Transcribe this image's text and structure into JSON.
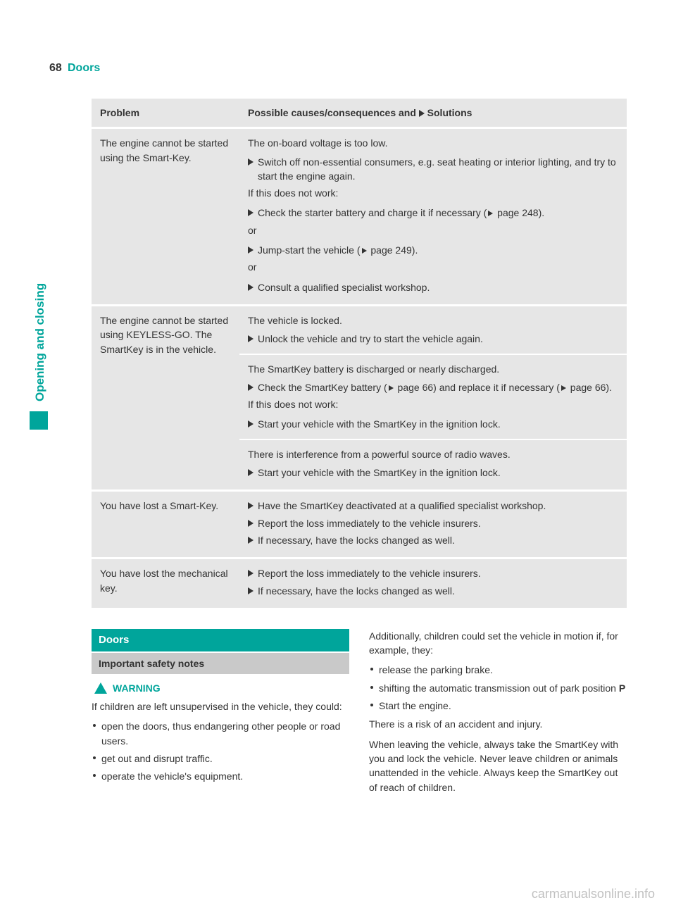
{
  "colors": {
    "accent": "#00a59b",
    "header_bg": "#e6e6e6",
    "subhead_bg": "#c9c9c9",
    "text": "#333333"
  },
  "page": {
    "number": "68",
    "title": "Doors",
    "side_label": "Opening and closing"
  },
  "table": {
    "headers": {
      "problem": "Problem",
      "solutions_prefix": "Possible causes/consequences and ",
      "solutions_suffix": " Solutions"
    },
    "rows": [
      {
        "problem": "The engine cannot be started using the Smart-Key.",
        "blocks": [
          {
            "intro": "The on-board voltage is too low.",
            "steps": [
              "Switch off non-essential consumers, e.g. seat heating or interior lighting, and try to start the engine again."
            ],
            "after": "If this does not work:"
          },
          {
            "steps": [
              {
                "text_before": "Check the starter battery and charge it if necessary (",
                "pageref": "page 248",
                "text_after": ")."
              }
            ],
            "after": "or"
          },
          {
            "steps": [
              {
                "text_before": "Jump-start the vehicle (",
                "pageref": "page 249",
                "text_after": ")."
              }
            ],
            "after": "or"
          },
          {
            "steps": [
              "Consult a qualified specialist workshop."
            ]
          }
        ]
      },
      {
        "problem": "The engine cannot be started using KEYLESS-GO. The SmartKey is in the vehicle.",
        "blocks": [
          {
            "intro": "The vehicle is locked.",
            "steps": [
              "Unlock the vehicle and try to start the vehicle again."
            ],
            "sep_after": true
          },
          {
            "intro": "The SmartKey battery is discharged or nearly discharged.",
            "steps": [
              {
                "text_before": "Check the SmartKey battery (",
                "pageref": "page 66",
                "text_mid": ") and replace it if necessary (",
                "pageref2": "page 66",
                "text_after": ")."
              }
            ],
            "after": "If this does not work:"
          },
          {
            "steps": [
              "Start your vehicle with the SmartKey in the ignition lock."
            ],
            "sep_after": true
          },
          {
            "intro": "There is interference from a powerful source of radio waves.",
            "steps": [
              "Start your vehicle with the SmartKey in the ignition lock."
            ]
          }
        ]
      },
      {
        "problem": "You have lost a Smart-Key.",
        "blocks": [
          {
            "steps": [
              "Have the SmartKey deactivated at a qualified specialist workshop.",
              "Report the loss immediately to the vehicle insurers.",
              "If necessary, have the locks changed as well."
            ]
          }
        ]
      },
      {
        "problem": "You have lost the mechanical key.",
        "blocks": [
          {
            "steps": [
              "Report the loss immediately to the vehicle insurers.",
              "If necessary, have the locks changed as well."
            ]
          }
        ]
      }
    ]
  },
  "section": {
    "heading": "Doors",
    "subheading": "Important safety notes",
    "warning_label": "WARNING",
    "left": {
      "intro": "If children are left unsupervised in the vehicle, they could:",
      "bullets": [
        "open the doors, thus endangering other people or road users.",
        "get out and disrupt traffic.",
        "operate the vehicle's equipment."
      ]
    },
    "right": {
      "intro": "Additionally, children could set the vehicle in motion if, for example, they:",
      "bullets": [
        "release the parking brake.",
        {
          "pre": "shifting the automatic transmission out of park position ",
          "bold": "P"
        },
        "Start the engine."
      ],
      "p1": "There is a risk of an accident and injury.",
      "p2": "When leaving the vehicle, always take the SmartKey with you and lock the vehicle. Never leave children or animals unattended in the vehicle. Always keep the SmartKey out of reach of children."
    }
  },
  "watermark": "carmanualsonline.info"
}
